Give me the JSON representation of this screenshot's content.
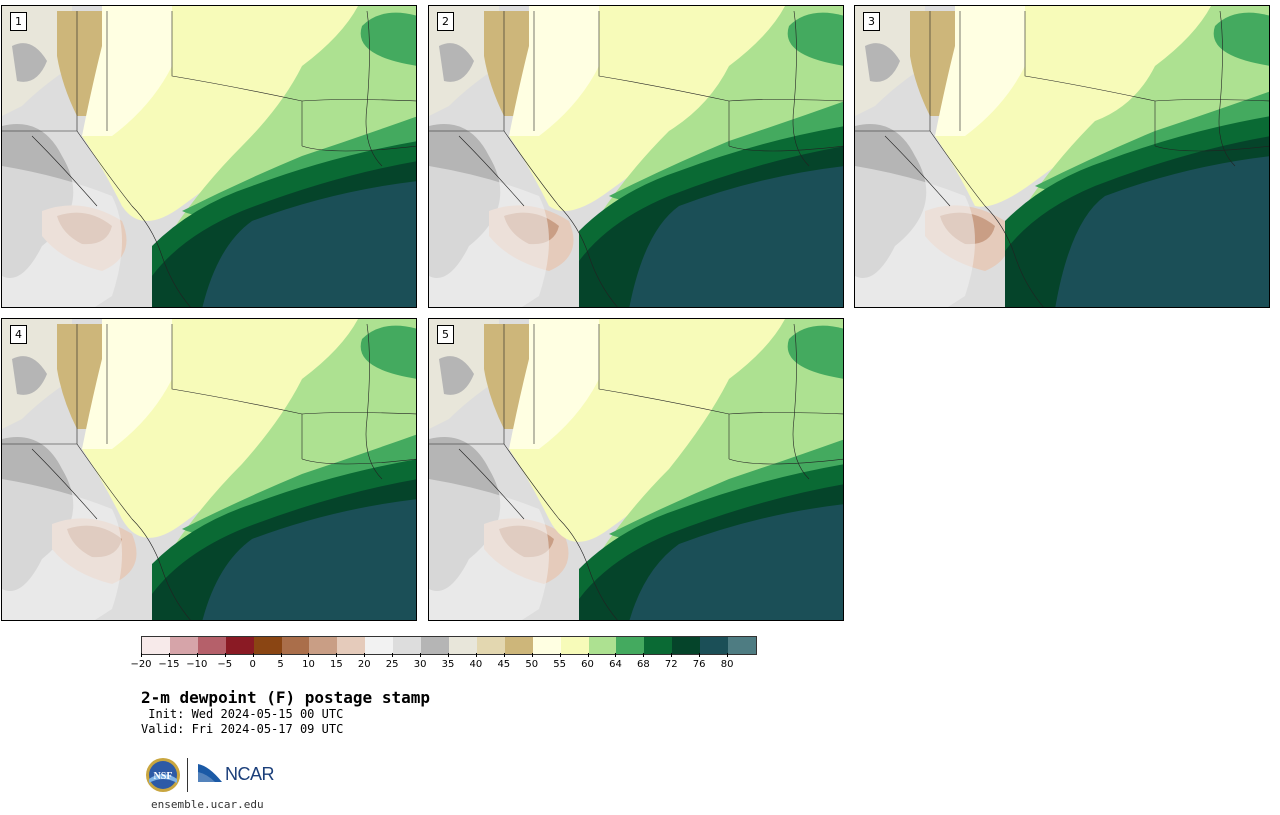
{
  "stamps": [
    {
      "id": "1",
      "label": "1"
    },
    {
      "id": "2",
      "label": "2"
    },
    {
      "id": "3",
      "label": "3"
    },
    {
      "id": "4",
      "label": "4"
    },
    {
      "id": "5",
      "label": "5"
    }
  ],
  "colorbar": {
    "colors": [
      "#f7eaea",
      "#d6a4a9",
      "#b5606a",
      "#8a1a24",
      "#8a4513",
      "#aa6e4a",
      "#c99e85",
      "#e5cbbb",
      "#f2f2f2",
      "#dddddd",
      "#b5b5b5",
      "#e8e6da",
      "#e3d7b0",
      "#cdb67a",
      "#ffffe2",
      "#f7fbb9",
      "#ade191",
      "#44aa5f",
      "#0a6a34",
      "#05442a",
      "#1b4f57",
      "#4e7c82"
    ],
    "ticks": [
      "−20",
      "−15",
      "−10",
      "−5",
      "0",
      "5",
      "10",
      "15",
      "20",
      "25",
      "30",
      "35",
      "40",
      "45",
      "50",
      "55",
      "60",
      "64",
      "68",
      "72",
      "76",
      "80"
    ]
  },
  "title": "2-m dewpoint (F) postage stamp",
  "init": " Init: Wed 2024-05-15 00 UTC",
  "valid": "Valid: Fri 2024-05-17 09 UTC",
  "logos": {
    "nsf": "NSF",
    "ncar": "NCAR"
  },
  "url": "ensemble.ucar.edu"
}
